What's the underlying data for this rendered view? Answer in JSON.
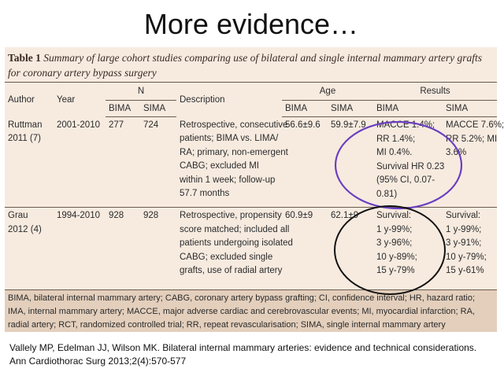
{
  "slide": {
    "title": "More evidence…"
  },
  "table": {
    "caption_lead": "Table 1",
    "caption_text": "Summary of large cohort studies comparing use of bilateral and single internal mammary artery grafts for coronary artery bypass surgery",
    "headers": {
      "author": "Author",
      "year": "Year",
      "n": "N",
      "description": "Description",
      "age": "Age",
      "results": "Results",
      "bima": "BIMA",
      "sima": "SIMA"
    },
    "rows": [
      {
        "author": [
          "Ruttman",
          "2011 (7)"
        ],
        "year": "2001-2010",
        "n_bima": "277",
        "n_sima": "724",
        "description": [
          "Retrospective, consecutive",
          "patients; BIMA vs. LIMA/",
          "RA; primary, non-emergent",
          "CABG; excluded MI",
          "within 1 week; follow-up",
          "57.7 months"
        ],
        "age_bima": "56.6±9.6",
        "age_sima": "59.9±7.9",
        "result_bima": [
          "MACCE 1.4%;",
          "RR 1.4%;",
          "MI 0.4%.",
          "Survival HR 0.23",
          "(95% CI, 0.07-",
          "0.81)"
        ],
        "result_sima": [
          "MACCE 7.6%;",
          "RR 5.2%; MI",
          "3.6%"
        ]
      },
      {
        "author": [
          "Grau",
          "2012 (4)"
        ],
        "year": "1994-2010",
        "n_bima": "928",
        "n_sima": "928",
        "description": [
          "Retrospective, propensity",
          "score matched; included all",
          "patients undergoing isolated",
          "CABG; excluded single",
          "grafts, use of radial artery"
        ],
        "age_bima": "60.9±9",
        "age_sima": "62.1±9",
        "result_bima": [
          "Survival:",
          "1 y-99%;",
          "3 y-96%;",
          "10 y-89%;",
          "15 y-79%"
        ],
        "result_sima": [
          "Survival:",
          "1 y-99%;",
          "3 y-91%;",
          "10 y-79%;",
          "15 y-61%"
        ]
      }
    ],
    "footer": "BIMA, bilateral internal mammary artery; CABG, coronary artery bypass grafting; CI, confidence interval; HR, hazard ratio; IMA, internal mammary artery; MACCE, major adverse cardiac and cerebrovascular events; MI, myocardial infarction; RA, radial artery; RCT, randomized controlled trial; RR, repeat revascularisation; SIMA, single internal mammary artery"
  },
  "citation": {
    "line1": "Vallely MP, Edelman JJ, Wilson MK. Bilateral internal mammary arteries: evidence and technical considerations.",
    "line2": "Ann Cardiothorac Surg 2013;2(4):570-577"
  },
  "annotations": {
    "circle1_color": "#6a3fc0",
    "circle2_color": "#111111"
  }
}
